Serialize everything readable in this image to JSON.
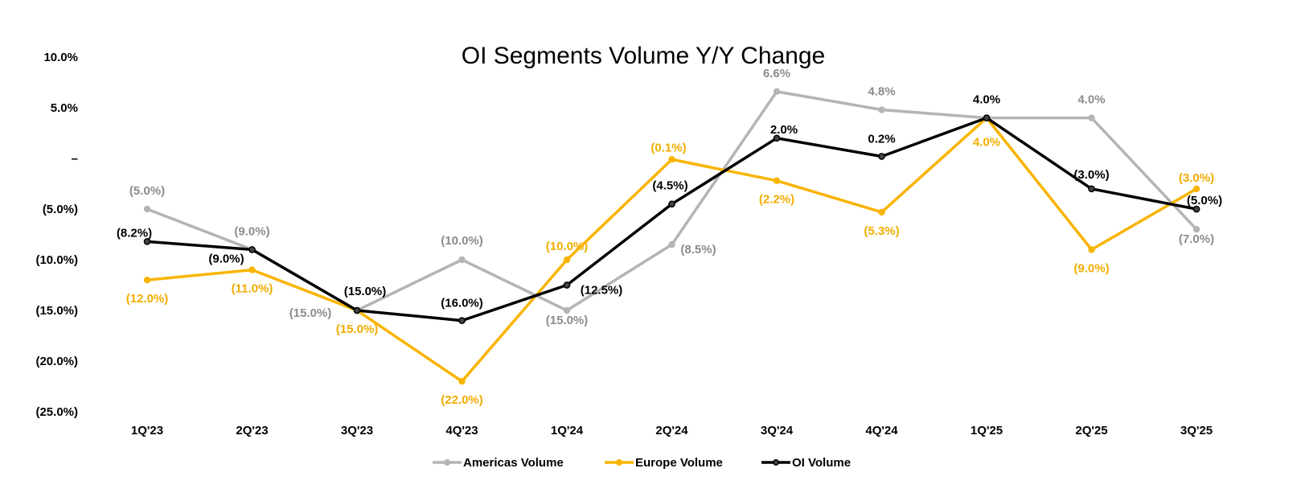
{
  "chart_data": {
    "type": "line",
    "title": "OI Segments Volume Y/Y Change",
    "categories": [
      "1Q'23",
      "2Q'23",
      "3Q'23",
      "4Q'23",
      "1Q'24",
      "2Q'24",
      "3Q'24",
      "4Q'24",
      "1Q'25",
      "2Q'25",
      "3Q'25"
    ],
    "ylim": [
      -25,
      10
    ],
    "yticks": [
      10,
      5,
      0,
      -5,
      -10,
      -15,
      -20,
      -25
    ],
    "ytick_labels": [
      "10.0%",
      "5.0%",
      "–",
      "(5.0%)",
      "(10.0%)",
      "(15.0%)",
      "(20.0%)",
      "(25.0%)"
    ],
    "xlabel": "",
    "ylabel": "",
    "grid": false,
    "legend_position": "bottom",
    "series": [
      {
        "name": "Americas Volume",
        "color": "#b4b4b4",
        "label_color": "#8c8c8c",
        "values": [
          -5.0,
          -9.0,
          -15.0,
          -10.0,
          -15.0,
          -8.5,
          6.6,
          4.8,
          4.0,
          4.0,
          -7.0
        ],
        "labels": [
          "(5.0%)",
          "(9.0%)",
          "(15.0%)",
          "(10.0%)",
          "(15.0%)",
          "(8.5%)",
          "6.6%",
          "4.8%",
          "",
          "4.0%",
          "(7.0%)"
        ]
      },
      {
        "name": "Europe Volume",
        "color": "#f9b401",
        "label_color": "#f2ad00",
        "values": [
          -12.0,
          -11.0,
          -15.0,
          -22.0,
          -10.0,
          -0.1,
          -2.2,
          -5.3,
          4.0,
          -9.0,
          -3.0
        ],
        "labels": [
          "(12.0%)",
          "(11.0%)",
          "(15.0%)",
          "(22.0%)",
          "(10.0%)",
          "(0.1%)",
          "(2.2%)",
          "(5.3%)",
          "4.0%",
          "(9.0%)",
          "(3.0%)"
        ]
      },
      {
        "name": "OI Volume",
        "color": "#000000",
        "label_color": "#000000",
        "values": [
          -8.2,
          -9.0,
          -15.0,
          -16.0,
          -12.5,
          -4.5,
          2.0,
          0.2,
          4.0,
          -3.0,
          -5.0
        ],
        "labels": [
          "(8.2%)",
          "(9.0%)",
          "(15.0%)",
          "(16.0%)",
          "(12.5%)",
          "(4.5%)",
          "2.0%",
          "0.2%",
          "4.0%",
          "(3.0%)",
          "(5.0%)"
        ]
      }
    ]
  }
}
